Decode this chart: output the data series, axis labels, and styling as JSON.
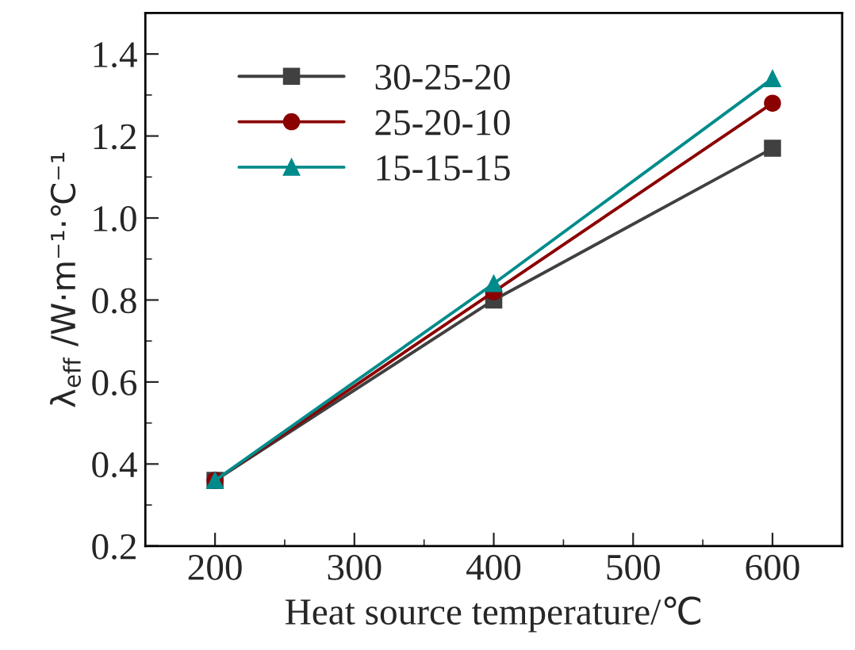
{
  "chart_data": {
    "type": "line",
    "xlabel": "Heat source temperature/℃",
    "ylabel": "λ$_{eff}$ /W·m⁻¹·℃⁻¹",
    "x": [
      200,
      400,
      600
    ],
    "series": [
      {
        "name": "30-25-20",
        "color": "#404040",
        "marker": "square",
        "values": [
          0.36,
          0.8,
          1.17
        ]
      },
      {
        "name": "25-20-10",
        "color": "#8b0000",
        "marker": "circle",
        "values": [
          0.36,
          0.82,
          1.28
        ]
      },
      {
        "name": "15-15-15",
        "color": "#008b8b",
        "marker": "triangle",
        "values": [
          0.36,
          0.84,
          1.34
        ]
      }
    ],
    "xlim": [
      150,
      650
    ],
    "xticks": [
      200,
      300,
      400,
      500,
      600
    ],
    "ylim": [
      0.2,
      1.5
    ],
    "yticks": [
      0.2,
      0.4,
      0.6,
      0.8,
      {
        "value": 1.0,
        "label": "1.0"
      },
      1.2,
      1.4
    ],
    "grid": false,
    "legend": "top left",
    "line_style": "solid"
  }
}
